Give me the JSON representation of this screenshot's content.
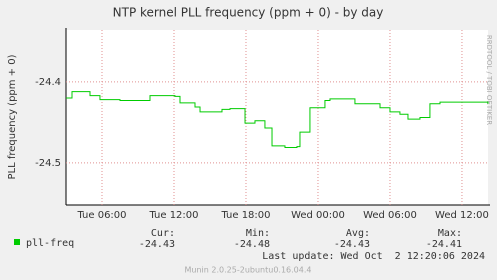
{
  "chart_data": {
    "type": "line",
    "title": "NTP kernel PLL frequency (ppm + 0) - by day",
    "y_label": "PLL frequency (ppm + 0)",
    "x": [
      3.0,
      3.5,
      5.0,
      5.83,
      7.5,
      9.83,
      10.0,
      12.08,
      12.5,
      13.75,
      14.17,
      16.0,
      16.67,
      17.92,
      18.75,
      19.58,
      20.17,
      21.25,
      22.25,
      22.5,
      23.33,
      24.58,
      25.0,
      27.08,
      29.17,
      30.0,
      30.83,
      31.5,
      32.5,
      33.33,
      34.17,
      36.25,
      38.17
    ],
    "series": [
      {
        "name": "pll-freq",
        "color": "#00cc00",
        "values": [
          -24.42,
          -24.412,
          -24.417,
          -24.422,
          -24.423,
          -24.423,
          -24.417,
          -24.418,
          -24.426,
          -24.431,
          -24.437,
          -24.434,
          -24.433,
          -24.451,
          -24.448,
          -24.457,
          -24.479,
          -24.481,
          -24.48,
          -24.462,
          -24.432,
          -24.423,
          -24.421,
          -24.427,
          -24.432,
          -24.437,
          -24.44,
          -24.446,
          -24.444,
          -24.427,
          -24.425,
          -24.425,
          -24.427
        ]
      }
    ],
    "xlim": [
      3,
      38.17
    ],
    "xticks": [
      {
        "value": 6,
        "label": "Tue 06:00"
      },
      {
        "value": 12,
        "label": "Tue 12:00"
      },
      {
        "value": 18,
        "label": "Tue 18:00"
      },
      {
        "value": 24,
        "label": "Wed 00:00"
      },
      {
        "value": 30,
        "label": "Wed 06:00"
      },
      {
        "value": 36,
        "label": "Wed 12:00"
      }
    ],
    "ylim": [
      -24.552,
      -24.336
    ],
    "yticks": [
      -24.4,
      -24.5
    ],
    "grid": true,
    "stats": [
      {
        "label": "Cur:",
        "value": -24.43
      },
      {
        "label": "Min:",
        "value": -24.48
      },
      {
        "label": "Avg:",
        "value": -24.43
      },
      {
        "label": "Max:",
        "value": -24.41
      }
    ],
    "last_update": "Last update: Wed Oct  2 12:20:06 2024",
    "footer": "Munin 2.0.25-2ubuntu0.16.04.4",
    "watermark": "RRDTOOL / TOBI OETIKER"
  }
}
